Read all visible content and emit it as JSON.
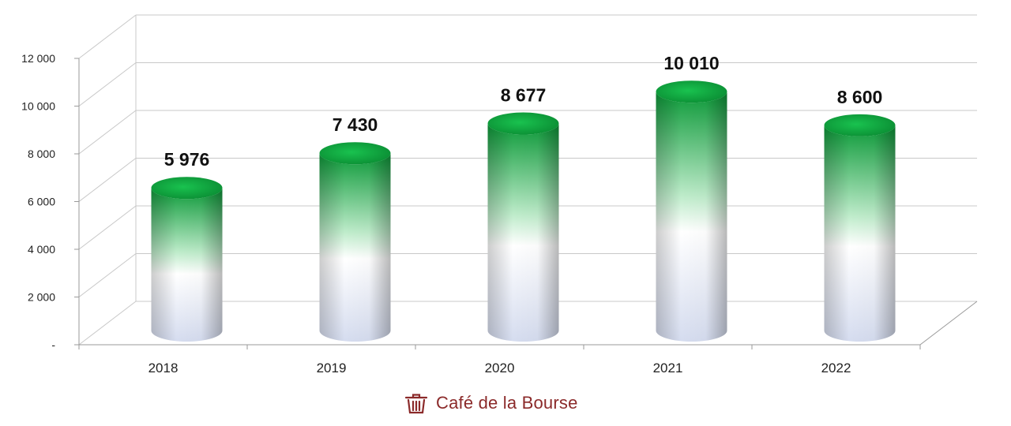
{
  "chart_data": {
    "type": "bar",
    "style": "3d-cylinder",
    "categories": [
      "2018",
      "2019",
      "2020",
      "2021",
      "2022"
    ],
    "values": [
      5976,
      7430,
      8677,
      10010,
      8600
    ],
    "data_labels": [
      "5 976",
      "7 430",
      "8 677",
      "10 010",
      "8 600"
    ],
    "ylim": [
      0,
      12000
    ],
    "yticks": [
      0,
      2000,
      4000,
      6000,
      8000,
      10000,
      12000
    ],
    "ytick_labels": [
      "-",
      "2 000",
      "4 000",
      "6 000",
      "8 000",
      "10 000",
      "12 000"
    ],
    "grid": true,
    "legend": "none",
    "colors": {
      "bar_top": "#0f9a3a",
      "bar_bottom": "#d8def0",
      "grid": "#c8c8c8"
    }
  },
  "brand": {
    "name": "Café de la Bourse",
    "icon": "trash-bin-icon",
    "color": "#8b2a2a"
  }
}
